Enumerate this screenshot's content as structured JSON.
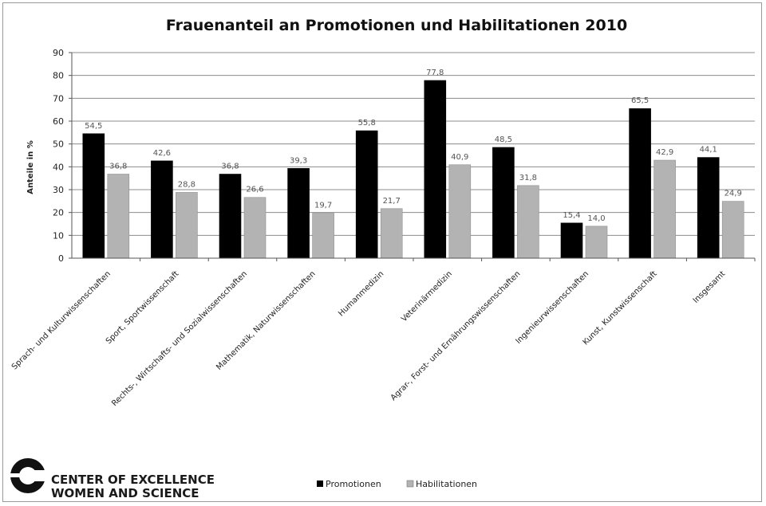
{
  "chart_data": {
    "type": "bar",
    "title": "Frauenanteil an Promotionen und Habilitationen 2010",
    "ylabel": "Anteile in %",
    "xlabel": "",
    "ylim": [
      0,
      90
    ],
    "yticks": [
      0,
      10,
      20,
      30,
      40,
      50,
      60,
      70,
      80,
      90
    ],
    "grid": true,
    "legend_position": "bottom",
    "categories": [
      "Sprach- und Kulturwissenschaften",
      "Sport, Sportwissenschaft",
      "Rechts-, Wirtschafts- und Sozialwissenschaften",
      "Mathematik, Naturwissenschaften",
      "Humanmedizin",
      "Veterinärmedizin",
      "Agrar-, Forst- und Ernährungswissenschaften",
      "Ingenieurwissenschaften",
      "Kunst, Kunstwissenschaft",
      "Insgesamt"
    ],
    "series": [
      {
        "name": "Promotionen",
        "color": "#000000",
        "values": [
          54.5,
          42.6,
          36.8,
          39.3,
          55.8,
          77.8,
          48.5,
          15.4,
          65.5,
          44.1
        ],
        "labels": [
          "54,5",
          "42,6",
          "36,8",
          "39,3",
          "55,8",
          "77,8",
          "48,5",
          "15,4",
          "65,5",
          "44,1"
        ]
      },
      {
        "name": "Habilitationen",
        "color": "#b3b3b3",
        "values": [
          36.8,
          28.8,
          26.6,
          19.7,
          21.7,
          40.9,
          31.8,
          14.0,
          42.9,
          24.9
        ],
        "labels": [
          "36,8",
          "28,8",
          "26,6",
          "19,7",
          "21,7",
          "40,9",
          "31,8",
          "14,0",
          "42,9",
          "24,9"
        ]
      }
    ]
  },
  "logo": {
    "line1": "CENTER OF EXCELLENCE",
    "line2": "WOMEN AND SCIENCE"
  }
}
